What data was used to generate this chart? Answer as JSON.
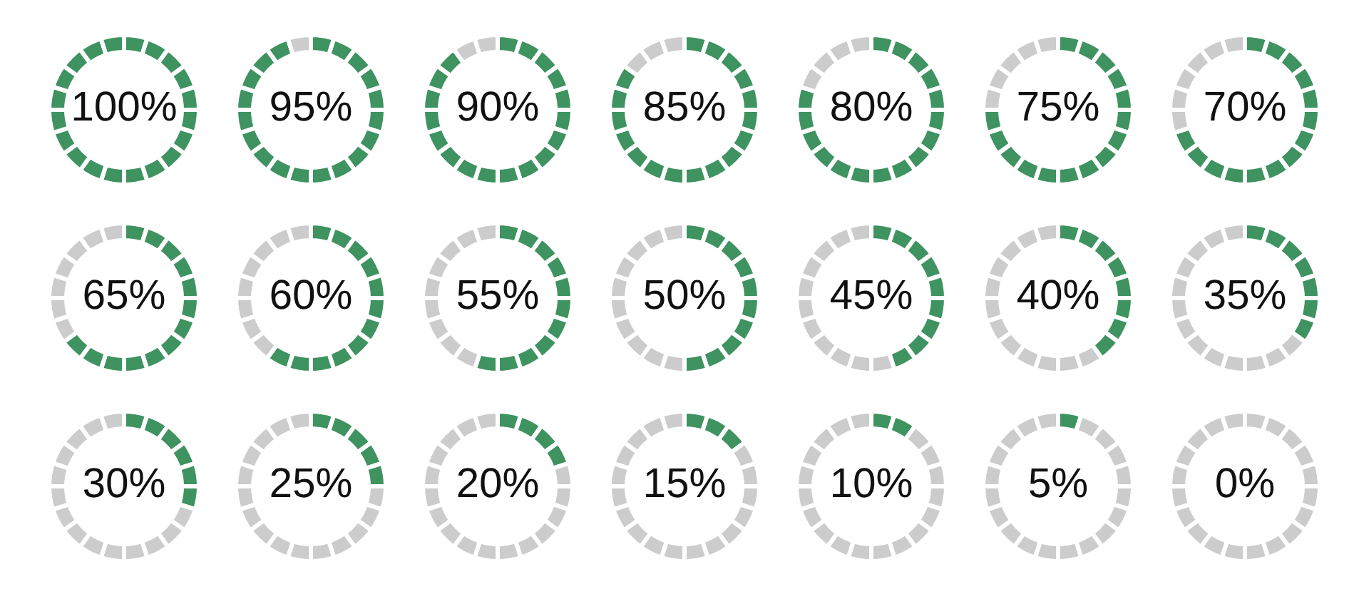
{
  "chart_data": [
    {
      "type": "donut",
      "categories": [
        null,
        null,
        null,
        null,
        null,
        null,
        null,
        null,
        null,
        null,
        null,
        null,
        null,
        null,
        null,
        null,
        null,
        null,
        null,
        null
      ],
      "values": [
        5,
        5,
        5,
        5,
        5,
        5,
        5,
        5,
        5,
        5,
        5,
        5,
        5,
        5,
        5,
        5,
        5,
        5,
        5,
        5
      ],
      "colors": [
        "#3e9360",
        "#3e9360",
        "#3e9360",
        "#3e9360",
        "#3e9360",
        "#3e9360",
        "#3e9360",
        "#3e9360",
        "#3e9360",
        "#3e9360",
        "#3e9360",
        "#3e9360",
        "#3e9360",
        "#3e9360",
        "#3e9360",
        "#3e9360",
        "#3e9360",
        "#3e9360",
        "#3e9360",
        "#3e9360"
      ],
      "annotations": [
        "100%"
      ]
    },
    {
      "type": "donut",
      "categories": [
        null,
        null,
        null,
        null,
        null,
        null,
        null,
        null,
        null,
        null,
        null,
        null,
        null,
        null,
        null,
        null,
        null,
        null,
        null,
        null
      ],
      "values": [
        5,
        5,
        5,
        5,
        5,
        5,
        5,
        5,
        5,
        5,
        5,
        5,
        5,
        5,
        5,
        5,
        5,
        5,
        5,
        5
      ],
      "colors": [
        "#3e9360",
        "#3e9360",
        "#3e9360",
        "#3e9360",
        "#3e9360",
        "#3e9360",
        "#3e9360",
        "#3e9360",
        "#3e9360",
        "#3e9360",
        "#3e9360",
        "#3e9360",
        "#3e9360",
        "#3e9360",
        "#3e9360",
        "#3e9360",
        "#3e9360",
        "#3e9360",
        "#3e9360",
        "#cccccc"
      ],
      "annotations": [
        "95%"
      ]
    },
    {
      "type": "donut",
      "categories": [
        null,
        null,
        null,
        null,
        null,
        null,
        null,
        null,
        null,
        null,
        null,
        null,
        null,
        null,
        null,
        null,
        null,
        null,
        null,
        null
      ],
      "values": [
        5,
        5,
        5,
        5,
        5,
        5,
        5,
        5,
        5,
        5,
        5,
        5,
        5,
        5,
        5,
        5,
        5,
        5,
        5,
        5
      ],
      "colors": [
        "#3e9360",
        "#3e9360",
        "#3e9360",
        "#3e9360",
        "#3e9360",
        "#3e9360",
        "#3e9360",
        "#3e9360",
        "#3e9360",
        "#3e9360",
        "#3e9360",
        "#3e9360",
        "#3e9360",
        "#3e9360",
        "#3e9360",
        "#3e9360",
        "#3e9360",
        "#3e9360",
        "#cccccc",
        "#cccccc"
      ],
      "annotations": [
        "90%"
      ]
    },
    {
      "type": "donut",
      "categories": [
        null,
        null,
        null,
        null,
        null,
        null,
        null,
        null,
        null,
        null,
        null,
        null,
        null,
        null,
        null,
        null,
        null,
        null,
        null,
        null
      ],
      "values": [
        5,
        5,
        5,
        5,
        5,
        5,
        5,
        5,
        5,
        5,
        5,
        5,
        5,
        5,
        5,
        5,
        5,
        5,
        5,
        5
      ],
      "colors": [
        "#3e9360",
        "#3e9360",
        "#3e9360",
        "#3e9360",
        "#3e9360",
        "#3e9360",
        "#3e9360",
        "#3e9360",
        "#3e9360",
        "#3e9360",
        "#3e9360",
        "#3e9360",
        "#3e9360",
        "#3e9360",
        "#3e9360",
        "#3e9360",
        "#3e9360",
        "#cccccc",
        "#cccccc",
        "#cccccc"
      ],
      "annotations": [
        "85%"
      ]
    },
    {
      "type": "donut",
      "categories": [
        null,
        null,
        null,
        null,
        null,
        null,
        null,
        null,
        null,
        null,
        null,
        null,
        null,
        null,
        null,
        null,
        null,
        null,
        null,
        null
      ],
      "values": [
        5,
        5,
        5,
        5,
        5,
        5,
        5,
        5,
        5,
        5,
        5,
        5,
        5,
        5,
        5,
        5,
        5,
        5,
        5,
        5
      ],
      "colors": [
        "#3e9360",
        "#3e9360",
        "#3e9360",
        "#3e9360",
        "#3e9360",
        "#3e9360",
        "#3e9360",
        "#3e9360",
        "#3e9360",
        "#3e9360",
        "#3e9360",
        "#3e9360",
        "#3e9360",
        "#3e9360",
        "#3e9360",
        "#3e9360",
        "#cccccc",
        "#cccccc",
        "#cccccc",
        "#cccccc"
      ],
      "annotations": [
        "80%"
      ]
    },
    {
      "type": "donut",
      "categories": [
        null,
        null,
        null,
        null,
        null,
        null,
        null,
        null,
        null,
        null,
        null,
        null,
        null,
        null,
        null,
        null,
        null,
        null,
        null,
        null
      ],
      "values": [
        5,
        5,
        5,
        5,
        5,
        5,
        5,
        5,
        5,
        5,
        5,
        5,
        5,
        5,
        5,
        5,
        5,
        5,
        5,
        5
      ],
      "colors": [
        "#3e9360",
        "#3e9360",
        "#3e9360",
        "#3e9360",
        "#3e9360",
        "#3e9360",
        "#3e9360",
        "#3e9360",
        "#3e9360",
        "#3e9360",
        "#3e9360",
        "#3e9360",
        "#3e9360",
        "#3e9360",
        "#3e9360",
        "#cccccc",
        "#cccccc",
        "#cccccc",
        "#cccccc",
        "#cccccc"
      ],
      "annotations": [
        "75%"
      ]
    },
    {
      "type": "donut",
      "categories": [
        null,
        null,
        null,
        null,
        null,
        null,
        null,
        null,
        null,
        null,
        null,
        null,
        null,
        null,
        null,
        null,
        null,
        null,
        null,
        null
      ],
      "values": [
        5,
        5,
        5,
        5,
        5,
        5,
        5,
        5,
        5,
        5,
        5,
        5,
        5,
        5,
        5,
        5,
        5,
        5,
        5,
        5
      ],
      "colors": [
        "#3e9360",
        "#3e9360",
        "#3e9360",
        "#3e9360",
        "#3e9360",
        "#3e9360",
        "#3e9360",
        "#3e9360",
        "#3e9360",
        "#3e9360",
        "#3e9360",
        "#3e9360",
        "#3e9360",
        "#3e9360",
        "#cccccc",
        "#cccccc",
        "#cccccc",
        "#cccccc",
        "#cccccc",
        "#cccccc"
      ],
      "annotations": [
        "70%"
      ]
    },
    {
      "type": "donut",
      "categories": [
        null,
        null,
        null,
        null,
        null,
        null,
        null,
        null,
        null,
        null,
        null,
        null,
        null,
        null,
        null,
        null,
        null,
        null,
        null,
        null
      ],
      "values": [
        5,
        5,
        5,
        5,
        5,
        5,
        5,
        5,
        5,
        5,
        5,
        5,
        5,
        5,
        5,
        5,
        5,
        5,
        5,
        5
      ],
      "colors": [
        "#3e9360",
        "#3e9360",
        "#3e9360",
        "#3e9360",
        "#3e9360",
        "#3e9360",
        "#3e9360",
        "#3e9360",
        "#3e9360",
        "#3e9360",
        "#3e9360",
        "#3e9360",
        "#3e9360",
        "#cccccc",
        "#cccccc",
        "#cccccc",
        "#cccccc",
        "#cccccc",
        "#cccccc",
        "#cccccc"
      ],
      "annotations": [
        "65%"
      ]
    },
    {
      "type": "donut",
      "categories": [
        null,
        null,
        null,
        null,
        null,
        null,
        null,
        null,
        null,
        null,
        null,
        null,
        null,
        null,
        null,
        null,
        null,
        null,
        null,
        null
      ],
      "values": [
        5,
        5,
        5,
        5,
        5,
        5,
        5,
        5,
        5,
        5,
        5,
        5,
        5,
        5,
        5,
        5,
        5,
        5,
        5,
        5
      ],
      "colors": [
        "#3e9360",
        "#3e9360",
        "#3e9360",
        "#3e9360",
        "#3e9360",
        "#3e9360",
        "#3e9360",
        "#3e9360",
        "#3e9360",
        "#3e9360",
        "#3e9360",
        "#3e9360",
        "#cccccc",
        "#cccccc",
        "#cccccc",
        "#cccccc",
        "#cccccc",
        "#cccccc",
        "#cccccc",
        "#cccccc"
      ],
      "annotations": [
        "60%"
      ]
    },
    {
      "type": "donut",
      "categories": [
        null,
        null,
        null,
        null,
        null,
        null,
        null,
        null,
        null,
        null,
        null,
        null,
        null,
        null,
        null,
        null,
        null,
        null,
        null,
        null
      ],
      "values": [
        5,
        5,
        5,
        5,
        5,
        5,
        5,
        5,
        5,
        5,
        5,
        5,
        5,
        5,
        5,
        5,
        5,
        5,
        5,
        5
      ],
      "colors": [
        "#3e9360",
        "#3e9360",
        "#3e9360",
        "#3e9360",
        "#3e9360",
        "#3e9360",
        "#3e9360",
        "#3e9360",
        "#3e9360",
        "#3e9360",
        "#3e9360",
        "#cccccc",
        "#cccccc",
        "#cccccc",
        "#cccccc",
        "#cccccc",
        "#cccccc",
        "#cccccc",
        "#cccccc",
        "#cccccc"
      ],
      "annotations": [
        "55%"
      ]
    },
    {
      "type": "donut",
      "categories": [
        null,
        null,
        null,
        null,
        null,
        null,
        null,
        null,
        null,
        null,
        null,
        null,
        null,
        null,
        null,
        null,
        null,
        null,
        null,
        null
      ],
      "values": [
        5,
        5,
        5,
        5,
        5,
        5,
        5,
        5,
        5,
        5,
        5,
        5,
        5,
        5,
        5,
        5,
        5,
        5,
        5,
        5
      ],
      "colors": [
        "#3e9360",
        "#3e9360",
        "#3e9360",
        "#3e9360",
        "#3e9360",
        "#3e9360",
        "#3e9360",
        "#3e9360",
        "#3e9360",
        "#3e9360",
        "#cccccc",
        "#cccccc",
        "#cccccc",
        "#cccccc",
        "#cccccc",
        "#cccccc",
        "#cccccc",
        "#cccccc",
        "#cccccc",
        "#cccccc"
      ],
      "annotations": [
        "50%"
      ]
    },
    {
      "type": "donut",
      "categories": [
        null,
        null,
        null,
        null,
        null,
        null,
        null,
        null,
        null,
        null,
        null,
        null,
        null,
        null,
        null,
        null,
        null,
        null,
        null,
        null
      ],
      "values": [
        5,
        5,
        5,
        5,
        5,
        5,
        5,
        5,
        5,
        5,
        5,
        5,
        5,
        5,
        5,
        5,
        5,
        5,
        5,
        5
      ],
      "colors": [
        "#3e9360",
        "#3e9360",
        "#3e9360",
        "#3e9360",
        "#3e9360",
        "#3e9360",
        "#3e9360",
        "#3e9360",
        "#3e9360",
        "#cccccc",
        "#cccccc",
        "#cccccc",
        "#cccccc",
        "#cccccc",
        "#cccccc",
        "#cccccc",
        "#cccccc",
        "#cccccc",
        "#cccccc",
        "#cccccc"
      ],
      "annotations": [
        "45%"
      ]
    },
    {
      "type": "donut",
      "categories": [
        null,
        null,
        null,
        null,
        null,
        null,
        null,
        null,
        null,
        null,
        null,
        null,
        null,
        null,
        null,
        null,
        null,
        null,
        null,
        null
      ],
      "values": [
        5,
        5,
        5,
        5,
        5,
        5,
        5,
        5,
        5,
        5,
        5,
        5,
        5,
        5,
        5,
        5,
        5,
        5,
        5,
        5
      ],
      "colors": [
        "#3e9360",
        "#3e9360",
        "#3e9360",
        "#3e9360",
        "#3e9360",
        "#3e9360",
        "#3e9360",
        "#3e9360",
        "#cccccc",
        "#cccccc",
        "#cccccc",
        "#cccccc",
        "#cccccc",
        "#cccccc",
        "#cccccc",
        "#cccccc",
        "#cccccc",
        "#cccccc",
        "#cccccc",
        "#cccccc"
      ],
      "annotations": [
        "40%"
      ]
    },
    {
      "type": "donut",
      "categories": [
        null,
        null,
        null,
        null,
        null,
        null,
        null,
        null,
        null,
        null,
        null,
        null,
        null,
        null,
        null,
        null,
        null,
        null,
        null,
        null
      ],
      "values": [
        5,
        5,
        5,
        5,
        5,
        5,
        5,
        5,
        5,
        5,
        5,
        5,
        5,
        5,
        5,
        5,
        5,
        5,
        5,
        5
      ],
      "colors": [
        "#3e9360",
        "#3e9360",
        "#3e9360",
        "#3e9360",
        "#3e9360",
        "#3e9360",
        "#3e9360",
        "#cccccc",
        "#cccccc",
        "#cccccc",
        "#cccccc",
        "#cccccc",
        "#cccccc",
        "#cccccc",
        "#cccccc",
        "#cccccc",
        "#cccccc",
        "#cccccc",
        "#cccccc",
        "#cccccc"
      ],
      "annotations": [
        "35%"
      ]
    },
    {
      "type": "donut",
      "categories": [
        null,
        null,
        null,
        null,
        null,
        null,
        null,
        null,
        null,
        null,
        null,
        null,
        null,
        null,
        null,
        null,
        null,
        null,
        null,
        null
      ],
      "values": [
        5,
        5,
        5,
        5,
        5,
        5,
        5,
        5,
        5,
        5,
        5,
        5,
        5,
        5,
        5,
        5,
        5,
        5,
        5,
        5
      ],
      "colors": [
        "#3e9360",
        "#3e9360",
        "#3e9360",
        "#3e9360",
        "#3e9360",
        "#3e9360",
        "#cccccc",
        "#cccccc",
        "#cccccc",
        "#cccccc",
        "#cccccc",
        "#cccccc",
        "#cccccc",
        "#cccccc",
        "#cccccc",
        "#cccccc",
        "#cccccc",
        "#cccccc",
        "#cccccc",
        "#cccccc"
      ],
      "annotations": [
        "30%"
      ]
    },
    {
      "type": "donut",
      "categories": [
        null,
        null,
        null,
        null,
        null,
        null,
        null,
        null,
        null,
        null,
        null,
        null,
        null,
        null,
        null,
        null,
        null,
        null,
        null,
        null
      ],
      "values": [
        5,
        5,
        5,
        5,
        5,
        5,
        5,
        5,
        5,
        5,
        5,
        5,
        5,
        5,
        5,
        5,
        5,
        5,
        5,
        5
      ],
      "colors": [
        "#3e9360",
        "#3e9360",
        "#3e9360",
        "#3e9360",
        "#3e9360",
        "#cccccc",
        "#cccccc",
        "#cccccc",
        "#cccccc",
        "#cccccc",
        "#cccccc",
        "#cccccc",
        "#cccccc",
        "#cccccc",
        "#cccccc",
        "#cccccc",
        "#cccccc",
        "#cccccc",
        "#cccccc",
        "#cccccc"
      ],
      "annotations": [
        "25%"
      ]
    },
    {
      "type": "donut",
      "categories": [
        null,
        null,
        null,
        null,
        null,
        null,
        null,
        null,
        null,
        null,
        null,
        null,
        null,
        null,
        null,
        null,
        null,
        null,
        null,
        null
      ],
      "values": [
        5,
        5,
        5,
        5,
        5,
        5,
        5,
        5,
        5,
        5,
        5,
        5,
        5,
        5,
        5,
        5,
        5,
        5,
        5,
        5
      ],
      "colors": [
        "#3e9360",
        "#3e9360",
        "#3e9360",
        "#3e9360",
        "#cccccc",
        "#cccccc",
        "#cccccc",
        "#cccccc",
        "#cccccc",
        "#cccccc",
        "#cccccc",
        "#cccccc",
        "#cccccc",
        "#cccccc",
        "#cccccc",
        "#cccccc",
        "#cccccc",
        "#cccccc",
        "#cccccc",
        "#cccccc"
      ],
      "annotations": [
        "20%"
      ]
    },
    {
      "type": "donut",
      "categories": [
        null,
        null,
        null,
        null,
        null,
        null,
        null,
        null,
        null,
        null,
        null,
        null,
        null,
        null,
        null,
        null,
        null,
        null,
        null,
        null
      ],
      "values": [
        5,
        5,
        5,
        5,
        5,
        5,
        5,
        5,
        5,
        5,
        5,
        5,
        5,
        5,
        5,
        5,
        5,
        5,
        5,
        5
      ],
      "colors": [
        "#3e9360",
        "#3e9360",
        "#3e9360",
        "#cccccc",
        "#cccccc",
        "#cccccc",
        "#cccccc",
        "#cccccc",
        "#cccccc",
        "#cccccc",
        "#cccccc",
        "#cccccc",
        "#cccccc",
        "#cccccc",
        "#cccccc",
        "#cccccc",
        "#cccccc",
        "#cccccc",
        "#cccccc",
        "#cccccc"
      ],
      "annotations": [
        "15%"
      ]
    },
    {
      "type": "donut",
      "categories": [
        null,
        null,
        null,
        null,
        null,
        null,
        null,
        null,
        null,
        null,
        null,
        null,
        null,
        null,
        null,
        null,
        null,
        null,
        null,
        null
      ],
      "values": [
        5,
        5,
        5,
        5,
        5,
        5,
        5,
        5,
        5,
        5,
        5,
        5,
        5,
        5,
        5,
        5,
        5,
        5,
        5,
        5
      ],
      "colors": [
        "#3e9360",
        "#3e9360",
        "#cccccc",
        "#cccccc",
        "#cccccc",
        "#cccccc",
        "#cccccc",
        "#cccccc",
        "#cccccc",
        "#cccccc",
        "#cccccc",
        "#cccccc",
        "#cccccc",
        "#cccccc",
        "#cccccc",
        "#cccccc",
        "#cccccc",
        "#cccccc",
        "#cccccc",
        "#cccccc"
      ],
      "annotations": [
        "10%"
      ]
    },
    {
      "type": "donut",
      "categories": [
        null,
        null,
        null,
        null,
        null,
        null,
        null,
        null,
        null,
        null,
        null,
        null,
        null,
        null,
        null,
        null,
        null,
        null,
        null,
        null
      ],
      "values": [
        5,
        5,
        5,
        5,
        5,
        5,
        5,
        5,
        5,
        5,
        5,
        5,
        5,
        5,
        5,
        5,
        5,
        5,
        5,
        5
      ],
      "colors": [
        "#3e9360",
        "#cccccc",
        "#cccccc",
        "#cccccc",
        "#cccccc",
        "#cccccc",
        "#cccccc",
        "#cccccc",
        "#cccccc",
        "#cccccc",
        "#cccccc",
        "#cccccc",
        "#cccccc",
        "#cccccc",
        "#cccccc",
        "#cccccc",
        "#cccccc",
        "#cccccc",
        "#cccccc",
        "#cccccc"
      ],
      "annotations": [
        "5%"
      ]
    },
    {
      "type": "donut",
      "categories": [
        null,
        null,
        null,
        null,
        null,
        null,
        null,
        null,
        null,
        null,
        null,
        null,
        null,
        null,
        null,
        null,
        null,
        null,
        null,
        null
      ],
      "values": [
        5,
        5,
        5,
        5,
        5,
        5,
        5,
        5,
        5,
        5,
        5,
        5,
        5,
        5,
        5,
        5,
        5,
        5,
        5,
        5
      ],
      "colors": [
        "#cccccc",
        "#cccccc",
        "#cccccc",
        "#cccccc",
        "#cccccc",
        "#cccccc",
        "#cccccc",
        "#cccccc",
        "#cccccc",
        "#cccccc",
        "#cccccc",
        "#cccccc",
        "#cccccc",
        "#cccccc",
        "#cccccc",
        "#cccccc",
        "#cccccc",
        "#cccccc",
        "#cccccc",
        "#cccccc"
      ],
      "annotations": [
        "0%"
      ]
    }
  ]
}
